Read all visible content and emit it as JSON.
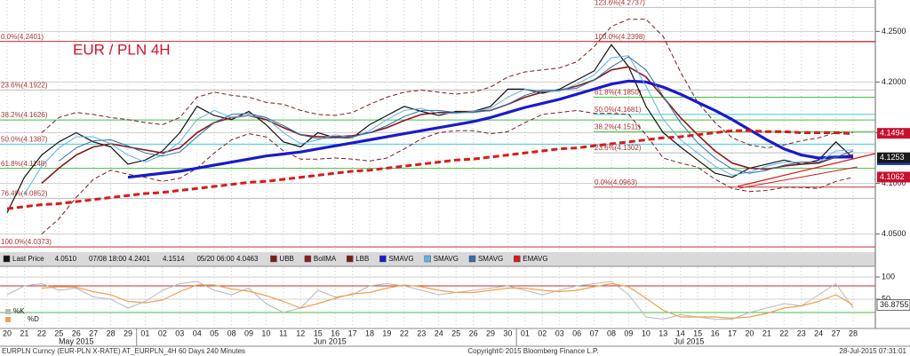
{
  "chart_data": [
    {
      "type": "line",
      "title": "EUR / PLN 4H",
      "categories": [
        "20",
        "21",
        "22",
        "25",
        "26",
        "27",
        "28",
        "29",
        "01",
        "02",
        "03",
        "04",
        "05",
        "08",
        "09",
        "10",
        "11",
        "12",
        "15",
        "16",
        "17",
        "18",
        "19",
        "22",
        "23",
        "24",
        "25",
        "26",
        "29",
        "30",
        "01",
        "02",
        "03",
        "06",
        "07",
        "08",
        "09",
        "10",
        "13",
        "14",
        "15",
        "16",
        "17",
        "20",
        "21",
        "22",
        "23",
        "24",
        "27",
        "28"
      ],
      "months": [
        "May 2015",
        "Jun 2015",
        "Jul 2015"
      ],
      "ylim": [
        4.033,
        4.281
      ],
      "yticks": [
        {
          "value": 4.25,
          "label": "4.2500"
        },
        {
          "value": 4.2,
          "label": "4.2000"
        },
        {
          "value": 4.15,
          "label": "4.1500"
        },
        {
          "value": 4.1,
          "label": "4.1000"
        },
        {
          "value": 4.05,
          "label": "4.0500"
        }
      ],
      "grid": true,
      "series": [
        {
          "name": "Last Price",
          "color": "#111111",
          "width": 1.2,
          "values": [
            4.071,
            4.106,
            4.128,
            4.141,
            4.15,
            4.141,
            4.136,
            4.119,
            4.123,
            4.132,
            4.15,
            4.176,
            4.167,
            4.163,
            4.171,
            4.158,
            4.141,
            4.136,
            4.15,
            4.145,
            4.145,
            4.158,
            4.167,
            4.176,
            4.171,
            4.167,
            4.171,
            4.171,
            4.176,
            4.193,
            4.193,
            4.189,
            4.193,
            4.202,
            4.211,
            4.237,
            4.215,
            4.176,
            4.15,
            4.136,
            4.123,
            4.11,
            4.106,
            4.115,
            4.119,
            4.123,
            4.119,
            4.123,
            4.141,
            4.125
          ]
        },
        {
          "name": "UBB",
          "color": "#7a1c1c",
          "style": "dashed",
          "width": 1,
          "values": [
            null,
            null,
            4.15,
            4.165,
            4.17,
            4.168,
            4.165,
            4.163,
            4.16,
            4.158,
            4.165,
            4.185,
            4.19,
            4.187,
            4.185,
            4.18,
            4.178,
            4.172,
            4.168,
            4.167,
            4.17,
            4.178,
            4.185,
            4.19,
            4.192,
            4.19,
            4.188,
            4.19,
            4.195,
            4.205,
            4.21,
            4.212,
            4.214,
            4.22,
            4.235,
            4.255,
            4.262,
            4.262,
            4.245,
            4.21,
            4.18,
            4.16,
            4.145,
            4.138,
            4.135,
            4.138,
            4.142,
            4.145,
            4.15,
            4.15
          ]
        },
        {
          "name": "BollMA",
          "color": "#8b1a1a",
          "width": 1.6,
          "values": [
            null,
            null,
            4.1,
            4.115,
            4.128,
            4.136,
            4.139,
            4.136,
            4.133,
            4.13,
            4.135,
            4.15,
            4.16,
            4.165,
            4.167,
            4.163,
            4.155,
            4.148,
            4.146,
            4.146,
            4.147,
            4.15,
            4.155,
            4.162,
            4.168,
            4.17,
            4.17,
            4.171,
            4.172,
            4.178,
            4.185,
            4.19,
            4.192,
            4.196,
            4.202,
            4.212,
            4.215,
            4.205,
            4.185,
            4.165,
            4.148,
            4.132,
            4.12,
            4.115,
            4.114,
            4.117,
            4.119,
            4.12,
            4.126,
            4.128
          ]
        },
        {
          "name": "LBB",
          "color": "#7a1c1c",
          "style": "dashed",
          "width": 1,
          "values": [
            null,
            null,
            4.05,
            4.065,
            4.086,
            4.104,
            4.113,
            4.109,
            4.106,
            4.102,
            4.105,
            4.115,
            4.13,
            4.143,
            4.149,
            4.146,
            4.132,
            4.124,
            4.124,
            4.125,
            4.124,
            4.122,
            4.125,
            4.134,
            4.144,
            4.15,
            4.152,
            4.152,
            4.149,
            4.151,
            4.16,
            4.168,
            4.17,
            4.172,
            4.169,
            4.169,
            4.168,
            4.148,
            4.125,
            4.12,
            4.116,
            4.104,
            4.095,
            4.092,
            4.093,
            4.096,
            4.096,
            4.095,
            4.102,
            4.106
          ]
        },
        {
          "name": "SMAVG",
          "color": "#1a1acc",
          "width": 3.2,
          "values": [
            null,
            null,
            null,
            null,
            null,
            null,
            null,
            4.106,
            4.108,
            4.11,
            4.112,
            4.115,
            4.118,
            4.121,
            4.124,
            4.127,
            4.129,
            4.131,
            4.134,
            4.137,
            4.14,
            4.143,
            4.146,
            4.149,
            4.152,
            4.155,
            4.158,
            4.161,
            4.165,
            4.17,
            4.175,
            4.179,
            4.183,
            4.188,
            4.193,
            4.198,
            4.201,
            4.2,
            4.195,
            4.188,
            4.18,
            4.172,
            4.163,
            4.153,
            4.143,
            4.134,
            4.128,
            4.125,
            4.126,
            4.126
          ]
        },
        {
          "name": "SMAVG",
          "color": "#5fb4e6",
          "width": 1,
          "values": [
            null,
            4.089,
            4.117,
            4.135,
            4.146,
            4.146,
            4.139,
            4.128,
            4.121,
            4.128,
            4.141,
            4.163,
            4.172,
            4.165,
            4.167,
            4.165,
            4.15,
            4.139,
            4.143,
            4.148,
            4.145,
            4.152,
            4.163,
            4.172,
            4.174,
            4.169,
            4.169,
            4.171,
            4.174,
            4.185,
            4.193,
            4.191,
            4.191,
            4.198,
            4.207,
            4.224,
            4.226,
            4.196,
            4.163,
            4.143,
            4.13,
            4.117,
            4.108,
            4.111,
            4.117,
            4.121,
            4.121,
            4.121,
            4.132,
            4.133
          ]
        },
        {
          "name": "SMAVG",
          "color": "#2f6fa8",
          "width": 1,
          "values": [
            null,
            null,
            null,
            4.122,
            4.135,
            4.142,
            4.143,
            4.137,
            4.13,
            4.127,
            4.131,
            4.146,
            4.16,
            4.168,
            4.169,
            4.165,
            4.157,
            4.148,
            4.144,
            4.145,
            4.146,
            4.15,
            4.157,
            4.166,
            4.172,
            4.172,
            4.17,
            4.17,
            4.172,
            4.178,
            4.187,
            4.192,
            4.192,
            4.194,
            4.202,
            4.215,
            4.225,
            4.212,
            4.186,
            4.16,
            4.14,
            4.125,
            4.114,
            4.11,
            4.113,
            4.118,
            4.121,
            4.121,
            4.126,
            4.132
          ]
        },
        {
          "name": "EMAVG",
          "color": "#d81b1b",
          "style": "dashed",
          "width": 3,
          "values": [
            4.075,
            4.077,
            4.079,
            4.08,
            4.082,
            4.084,
            4.086,
            4.088,
            4.09,
            4.091,
            4.093,
            4.095,
            4.097,
            4.099,
            4.101,
            4.102,
            4.104,
            4.106,
            4.108,
            4.11,
            4.112,
            4.113,
            4.115,
            4.117,
            4.119,
            4.121,
            4.123,
            4.124,
            4.126,
            4.128,
            4.13,
            4.132,
            4.134,
            4.135,
            4.137,
            4.139,
            4.141,
            4.143,
            4.145,
            4.146,
            4.148,
            4.15,
            4.152,
            4.152,
            4.151,
            4.151,
            4.15,
            4.15,
            4.15,
            4.149
          ]
        }
      ],
      "legend_stats": [
        "4.0510",
        "07/08 18:00 4.2401",
        "4.1514",
        "05/20 06:00 4.0463"
      ],
      "fib_sets": [
        [
          {
            "label": "0.0%(4.2401)",
            "value": 4.2401,
            "color": "#c03030"
          },
          {
            "label": "23.6%(4.1922)",
            "value": 4.1922,
            "color": "#bbbbbb"
          },
          {
            "label": "38.2%(4.1626)",
            "value": 4.1626,
            "color": "#40c040"
          },
          {
            "label": "50.0%(4.1387)",
            "value": 4.1387,
            "color": "#40c8d8"
          },
          {
            "label": "61.8%(4.1148)",
            "value": 4.1148,
            "color": "#40c040"
          },
          {
            "label": "76.4%(4.0852)",
            "value": 4.0852,
            "color": "#bbbbbb"
          },
          {
            "label": "100.0%(4.0373)",
            "value": 4.0373,
            "color": "#c03030"
          }
        ],
        [
          {
            "label": "123.6%(4.2737)",
            "value": 4.2737,
            "color": "#bbbbbb"
          },
          {
            "label": "100.0%(4.2398)",
            "value": 4.2398,
            "color": "#c03030"
          },
          {
            "label": "61.8%(4.1850)",
            "value": 4.185,
            "color": "#40c040"
          },
          {
            "label": "50.0%(4.1681)",
            "value": 4.1681,
            "color": "#40c8d8"
          },
          {
            "label": "38.2%(4.1511)",
            "value": 4.1511,
            "color": "#40c040"
          },
          {
            "label": "23.6%(4.1302)",
            "value": 4.1302,
            "color": "#bbbbbb"
          },
          {
            "label": "0.0%(4.0963)",
            "value": 4.0963,
            "color": "#c03030"
          }
        ]
      ],
      "price_tags": [
        {
          "value": 4.1494,
          "color": "#c8102e"
        },
        {
          "value": 4.1233,
          "color": "#1f3fbf"
        },
        {
          "value": 4.1253,
          "color": "#1a1a1a"
        },
        {
          "value": 4.1062,
          "color": "#c8102e"
        }
      ]
    },
    {
      "type": "line",
      "ylim": [
        -12,
        114
      ],
      "yticks": [
        100,
        50
      ],
      "levels": [
        {
          "value": 80,
          "color": "#c03030"
        },
        {
          "value": 20,
          "color": "#40c040"
        }
      ],
      "series": [
        {
          "name": "%K",
          "color": "#b8b8b8",
          "width": 1,
          "values": [
            60,
            80,
            85,
            70,
            75,
            55,
            50,
            30,
            45,
            70,
            85,
            90,
            70,
            60,
            75,
            40,
            20,
            30,
            70,
            55,
            60,
            80,
            85,
            80,
            70,
            60,
            65,
            70,
            75,
            80,
            70,
            60,
            70,
            80,
            85,
            90,
            60,
            10,
            5,
            15,
            10,
            5,
            5,
            20,
            30,
            40,
            35,
            60,
            85,
            30
          ]
        },
        {
          "name": "%D",
          "color": "#f0a050",
          "width": 1.2,
          "values": [
            null,
            null,
            75,
            78,
            77,
            67,
            60,
            45,
            42,
            48,
            67,
            82,
            82,
            73,
            68,
            58,
            45,
            30,
            40,
            52,
            62,
            65,
            75,
            82,
            78,
            70,
            65,
            65,
            70,
            75,
            75,
            70,
            67,
            70,
            78,
            85,
            78,
            52,
            25,
            10,
            10,
            10,
            7,
            10,
            18,
            30,
            35,
            45,
            60,
            36.8755
          ]
        }
      ],
      "last_value": 36.8755
    }
  ],
  "footer": {
    "left": "EURPLN Curncy (EUR-PLN X-RATE) AT_EURPLN_4H 60 Days 240 Minutes",
    "center": "Copyright© 2015 Bloomberg Finance L.P.",
    "right": "28-Jul-2015 07:31:01"
  }
}
